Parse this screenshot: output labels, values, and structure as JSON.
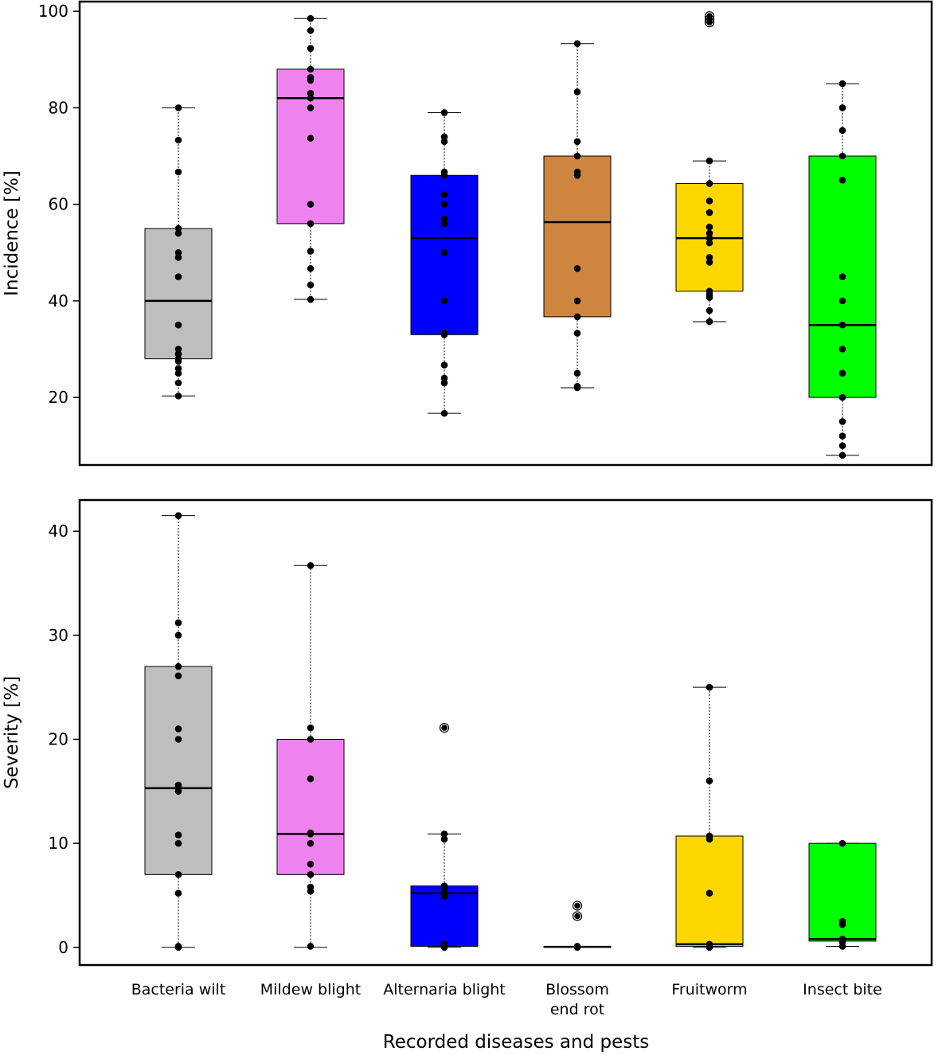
{
  "chart_data": [
    {
      "type": "box",
      "ylabel": "Incidence [%]",
      "ylim": [
        6,
        102
      ],
      "yticks": [
        20,
        40,
        60,
        80,
        100
      ],
      "groups": [
        {
          "name": "Bacteria wilt",
          "color": "#bebebe",
          "q1": 28,
          "median": 40,
          "q3": 55,
          "whisker_low": 20.3,
          "whisker_high": 80,
          "points": [
            80,
            73.3,
            66.7,
            55,
            54,
            50,
            49,
            45,
            35,
            30,
            29,
            28,
            27.5,
            26,
            25,
            23,
            20.3
          ],
          "outliers": []
        },
        {
          "name": "Mildew blight",
          "color": "#ee82ee",
          "q1": 56,
          "median": 82,
          "q3": 88,
          "whisker_low": 40.3,
          "whisker_high": 98.5,
          "points": [
            98.5,
            96,
            92.3,
            88,
            86.3,
            85.7,
            83,
            82,
            80,
            73.7,
            60,
            56,
            50.3,
            46.7,
            43.3,
            40.3
          ],
          "outliers": []
        },
        {
          "name": "Alternaria blight",
          "color": "#0000ff",
          "q1": 33,
          "median": 53,
          "q3": 66,
          "whisker_low": 16.7,
          "whisker_high": 79,
          "points": [
            79,
            74,
            73,
            66.7,
            66,
            62,
            60,
            57,
            56,
            50,
            40,
            33.3,
            33,
            26.7,
            24,
            23,
            16.7
          ],
          "outliers": []
        },
        {
          "name": "Blossom end rot",
          "color": "#cd853f",
          "q1": 36.7,
          "median": 56.3,
          "q3": 70,
          "whisker_low": 22,
          "whisker_high": 93.3,
          "points": [
            93.3,
            83.3,
            73,
            70,
            66.7,
            66,
            46.7,
            40,
            36.7,
            33.3,
            25,
            22.3,
            22
          ],
          "outliers": []
        },
        {
          "name": "Fruitworm",
          "color": "#ffd700",
          "q1": 42,
          "median": 53,
          "q3": 64.3,
          "whisker_low": 35.7,
          "whisker_high": 69,
          "points": [
            69,
            64.3,
            60.7,
            58.3,
            55.3,
            54,
            53,
            52,
            49,
            48,
            42,
            41.3,
            40.7,
            38,
            35.7
          ],
          "outliers": [
            99,
            98.3,
            97.7
          ]
        },
        {
          "name": "Insect bite",
          "color": "#00ff00",
          "q1": 20,
          "median": 35,
          "q3": 70,
          "whisker_low": 8,
          "whisker_high": 85,
          "points": [
            85,
            80,
            75.3,
            70,
            65,
            45,
            40,
            35,
            30,
            25,
            20,
            15,
            12,
            10,
            8
          ],
          "outliers": []
        }
      ]
    },
    {
      "type": "box",
      "ylabel": "Severity [%]",
      "ylim": [
        -1.7,
        43
      ],
      "yticks": [
        0,
        10,
        20,
        30,
        40
      ],
      "groups": [
        {
          "name": "Bacteria wilt",
          "color": "#bebebe",
          "q1": 7,
          "median": 15.3,
          "q3": 27,
          "whisker_low": 0,
          "whisker_high": 41.5,
          "points": [
            41.5,
            31.2,
            30,
            27,
            26.1,
            21,
            20,
            15.6,
            15.3,
            15,
            10.8,
            10,
            7,
            5.2,
            0.1,
            0
          ],
          "outliers": []
        },
        {
          "name": "Mildew blight",
          "color": "#ee82ee",
          "q1": 7,
          "median": 10.9,
          "q3": 20,
          "whisker_low": 0,
          "whisker_high": 36.7,
          "points": [
            36.7,
            21.1,
            20,
            16.2,
            11,
            10.9,
            10,
            8,
            7,
            5.8,
            5.4,
            0.1
          ],
          "outliers": []
        },
        {
          "name": "Alternaria blight",
          "color": "#0000ff",
          "q1": 0.1,
          "median": 5.2,
          "q3": 5.9,
          "whisker_low": 0,
          "whisker_high": 10.9,
          "points": [
            10.9,
            10.4,
            5.9,
            5.5,
            5.2,
            4.9,
            0.3,
            0
          ],
          "outliers": [
            21.1
          ]
        },
        {
          "name": "Blossom end rot",
          "color": "#cd853f",
          "q1": 0,
          "median": 0.05,
          "q3": 0.1,
          "whisker_low": 0,
          "whisker_high": 0.1,
          "points": [
            0.1,
            0
          ],
          "outliers": [
            4,
            3
          ]
        },
        {
          "name": "Fruitworm",
          "color": "#ffd700",
          "q1": 0.1,
          "median": 0.3,
          "q3": 10.7,
          "whisker_low": 0,
          "whisker_high": 25,
          "points": [
            25,
            16,
            10.7,
            10.4,
            5.2,
            0.3,
            0
          ],
          "outliers": []
        },
        {
          "name": "Insect bite",
          "color": "#00ff00",
          "q1": 0.6,
          "median": 0.8,
          "q3": 10,
          "whisker_low": 0.1,
          "whisker_high": 10,
          "points": [
            10,
            2.5,
            2.2,
            0.8,
            0.5,
            0.1
          ],
          "outliers": []
        }
      ]
    }
  ],
  "categories": [
    {
      "line1": "Bacteria wilt",
      "line2": ""
    },
    {
      "line1": "Mildew blight",
      "line2": ""
    },
    {
      "line1": "Alternaria blight",
      "line2": ""
    },
    {
      "line1": "Blossom",
      "line2": "end rot"
    },
    {
      "line1": "Fruitworm",
      "line2": ""
    },
    {
      "line1": "Insect bite",
      "line2": ""
    }
  ],
  "xlabel": "Recorded diseases and pests"
}
